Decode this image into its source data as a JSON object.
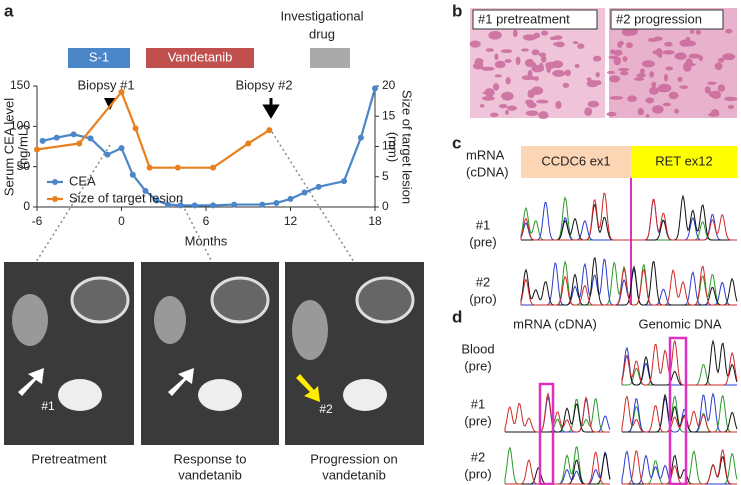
{
  "panels": {
    "a": "a",
    "b": "b",
    "c": "c",
    "d": "d"
  },
  "chart_data": {
    "type": "line",
    "xlabel": "Months",
    "ylabel": [
      "Serum CEA level",
      "(ng/mL)"
    ],
    "y2label": [
      "Size of target lesion",
      "(mm)"
    ],
    "treatments": [
      "S-1",
      "Vandetanib",
      [
        "Investigational",
        "drug"
      ]
    ],
    "annotations": [
      "Biopsy #1",
      "Biopsy #2"
    ],
    "xlim": [
      -6,
      18
    ],
    "xticks": [
      -6,
      0,
      6,
      12,
      18
    ],
    "ylim": [
      0,
      150
    ],
    "yticks": [
      0,
      50,
      100,
      150
    ],
    "y2lim": [
      0,
      20
    ],
    "y2ticks": [
      0,
      5,
      10,
      15,
      20
    ],
    "legend": "lower left",
    "series": [
      {
        "name": "CEA",
        "color": "#4a86c8",
        "x": [
          -5.6,
          -4.6,
          -3.4,
          -2.2,
          -1,
          0,
          0.8,
          1.7,
          2.5,
          3.3,
          4.2,
          5.2,
          6.5,
          8,
          10,
          11,
          12,
          13,
          14,
          15.8,
          17,
          18
        ],
        "values": [
          82,
          86,
          90,
          85,
          65,
          73,
          40,
          20,
          8,
          3,
          2,
          2,
          2,
          3,
          3,
          5,
          10,
          18,
          25,
          32,
          86,
          147
        ]
      },
      {
        "name": "Size of target lesion",
        "color": "#e8801e",
        "axis": "y2",
        "x": [
          -6,
          -3,
          0,
          1,
          2,
          4,
          6.5,
          9,
          10.5
        ],
        "values": [
          9.5,
          10.5,
          19,
          13,
          6.5,
          6.5,
          6.5,
          10.5,
          12.7
        ]
      }
    ]
  },
  "ct": {
    "labels": [
      "#1",
      "#2"
    ],
    "captions": [
      [
        "Pretreatment"
      ],
      [
        "Response to",
        "vandetanib"
      ],
      [
        "Progression on",
        "vandetanib"
      ]
    ]
  },
  "histology": [
    "#1 pretreatment",
    "#2 progression"
  ],
  "panel_c": {
    "mrna": [
      "mRNA",
      "(cDNA)"
    ],
    "exons": [
      "CCDC6 ex1",
      "RET ex12"
    ],
    "rows": [
      [
        "#1",
        "(pre)"
      ],
      [
        "#2",
        "(pro)"
      ]
    ]
  },
  "panel_d": {
    "columns": [
      "mRNA (cDNA)",
      "Genomic DNA"
    ],
    "rows": [
      [
        "Blood",
        "(pre)"
      ],
      [
        "#1",
        "(pre)"
      ],
      [
        "#2",
        "(pro)"
      ]
    ]
  }
}
